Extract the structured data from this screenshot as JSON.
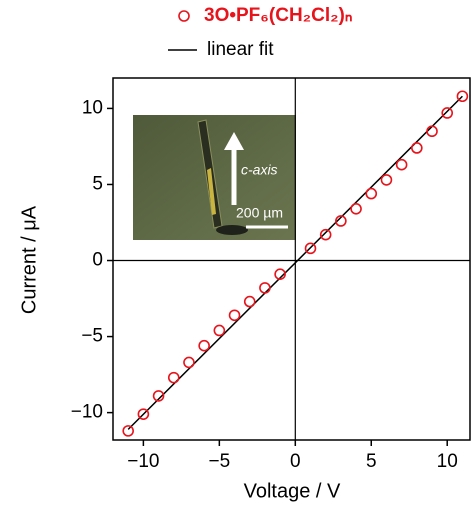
{
  "chart_data": {
    "type": "scatter",
    "x_label": "Voltage / V",
    "y_label": "Current / μA",
    "xlim": [
      -12,
      11.5
    ],
    "ylim": [
      -11.8,
      12
    ],
    "xticks": [
      {
        "value": -10,
        "label": "−10"
      },
      {
        "value": -5,
        "label": "−5"
      },
      0,
      5,
      10
    ],
    "yticks": [
      {
        "value": -10,
        "label": "−10"
      },
      {
        "value": -5,
        "label": "−5"
      },
      0,
      5,
      10
    ],
    "series": [
      {
        "name": "3O•PF₆(CH₂Cl₂)ₙ",
        "color": "#e8141c",
        "x": [
          -11,
          -10,
          -9,
          -8,
          -7,
          -6,
          -5,
          -4,
          -3,
          -2,
          -1,
          1,
          2,
          3,
          4,
          5,
          6,
          7,
          8,
          9,
          10,
          11
        ],
        "values": [
          -11.2,
          -10.1,
          -8.9,
          -7.7,
          -6.7,
          -5.6,
          -4.6,
          -3.6,
          -2.7,
          -1.8,
          -0.9,
          0.8,
          1.7,
          2.6,
          3.4,
          4.4,
          5.3,
          6.3,
          7.4,
          8.5,
          9.7,
          10.8
        ]
      },
      {
        "name": "linear fit",
        "color": "#000000",
        "x": [
          -11,
          11
        ],
        "values": [
          -11.1,
          10.8
        ]
      }
    ],
    "annotations": [
      "c-axis",
      "200 µm"
    ]
  }
}
